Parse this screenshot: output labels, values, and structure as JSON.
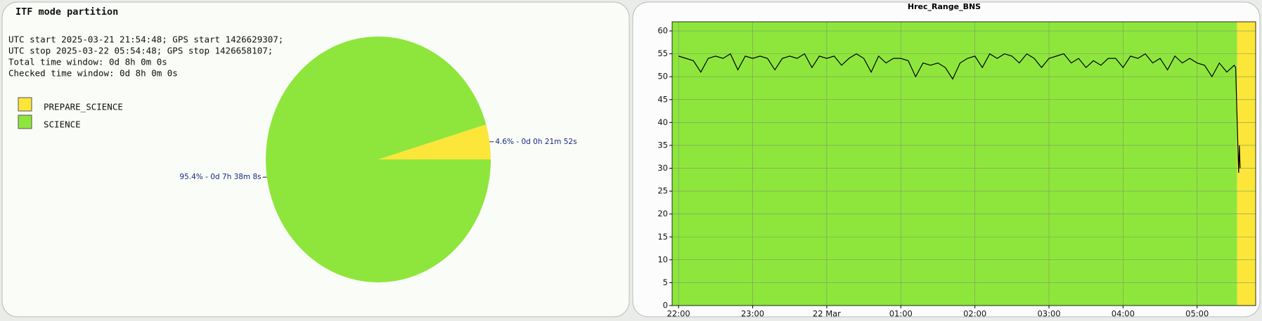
{
  "chart_data": [
    {
      "type": "pie",
      "title": "ITF mode partition",
      "info_lines": [
        "UTC start 2025-03-21 21:54:48; GPS start 1426629307;",
        "UTC stop 2025-03-22 05:54:48; GPS stop 1426658107;",
        "Total time window: 0d 8h 0m 0s",
        "Checked time window: 0d 8h 0m 0s"
      ],
      "categories": [
        "PREPARE_SCIENCE",
        "SCIENCE"
      ],
      "values": [
        4.6,
        95.4
      ],
      "value_labels": [
        "4.6% - 0d 0h 21m 52s",
        "95.4% - 0d 7h 38m 8s"
      ],
      "colors": [
        "#fce63a",
        "#8ee63c"
      ]
    },
    {
      "type": "line",
      "title": "Hrec_Range_BNS",
      "x": [
        22.0,
        22.1,
        22.2,
        22.3,
        22.4,
        22.5,
        22.6,
        22.7,
        22.8,
        22.9,
        23.0,
        23.1,
        23.2,
        23.3,
        23.4,
        23.5,
        23.6,
        23.7,
        23.8,
        23.9,
        24.0,
        24.1,
        24.2,
        24.3,
        24.4,
        24.5,
        24.6,
        24.7,
        24.8,
        24.9,
        25.0,
        25.1,
        25.2,
        25.3,
        25.4,
        25.5,
        25.6,
        25.7,
        25.8,
        25.9,
        26.0,
        26.1,
        26.2,
        26.3,
        26.4,
        26.5,
        26.6,
        26.7,
        26.8,
        26.9,
        27.0,
        27.1,
        27.2,
        27.3,
        27.4,
        27.5,
        27.6,
        27.7,
        27.8,
        27.9,
        28.0,
        28.1,
        28.2,
        28.3,
        28.4,
        28.5,
        28.6,
        28.7,
        28.8,
        28.9,
        29.0,
        29.1,
        29.2,
        29.3,
        29.4,
        29.5,
        29.52,
        29.56,
        29.57,
        29.58
      ],
      "series": [
        {
          "name": "Hrec_Range_BNS",
          "color": "#000000",
          "values": [
            54.5,
            54,
            53.5,
            51,
            54,
            54.5,
            54,
            55,
            51.5,
            54.5,
            54,
            54.5,
            54,
            51.5,
            54,
            54.5,
            54,
            55,
            52,
            54.5,
            54,
            54.5,
            52.5,
            54,
            55,
            54,
            51,
            54.5,
            53,
            54,
            54,
            53.5,
            50,
            53,
            52.5,
            53,
            52,
            49.5,
            53,
            54,
            54.5,
            52,
            55,
            54,
            55,
            54.5,
            53,
            55,
            54,
            52,
            54,
            54.5,
            55,
            53,
            54,
            52,
            53.5,
            52.5,
            54,
            54,
            52,
            54.5,
            54,
            55,
            53,
            54,
            51.5,
            54.5,
            53,
            54,
            53,
            52.5,
            50,
            53,
            51,
            52.5,
            52,
            29,
            35,
            30
          ]
        }
      ],
      "bands": [
        {
          "start": 21.913,
          "end": 29.54,
          "color": "#8ee63c"
        },
        {
          "start": 29.54,
          "end": 29.79,
          "color": "#fce63a"
        }
      ],
      "xlim": [
        21.913,
        29.79
      ],
      "xticks": [
        {
          "value": 22,
          "label": "22:00"
        },
        {
          "value": 23,
          "label": "23:00"
        },
        {
          "value": 24,
          "label": "22 Mar"
        },
        {
          "value": 25,
          "label": "01:00"
        },
        {
          "value": 26,
          "label": "02:00"
        },
        {
          "value": 27,
          "label": "03:00"
        },
        {
          "value": 28,
          "label": "04:00"
        },
        {
          "value": 29,
          "label": "05:00"
        }
      ],
      "ylim": [
        0,
        62
      ],
      "yticks": [
        0,
        5,
        10,
        15,
        20,
        25,
        30,
        35,
        40,
        45,
        50,
        55,
        60
      ],
      "grid": true
    }
  ]
}
